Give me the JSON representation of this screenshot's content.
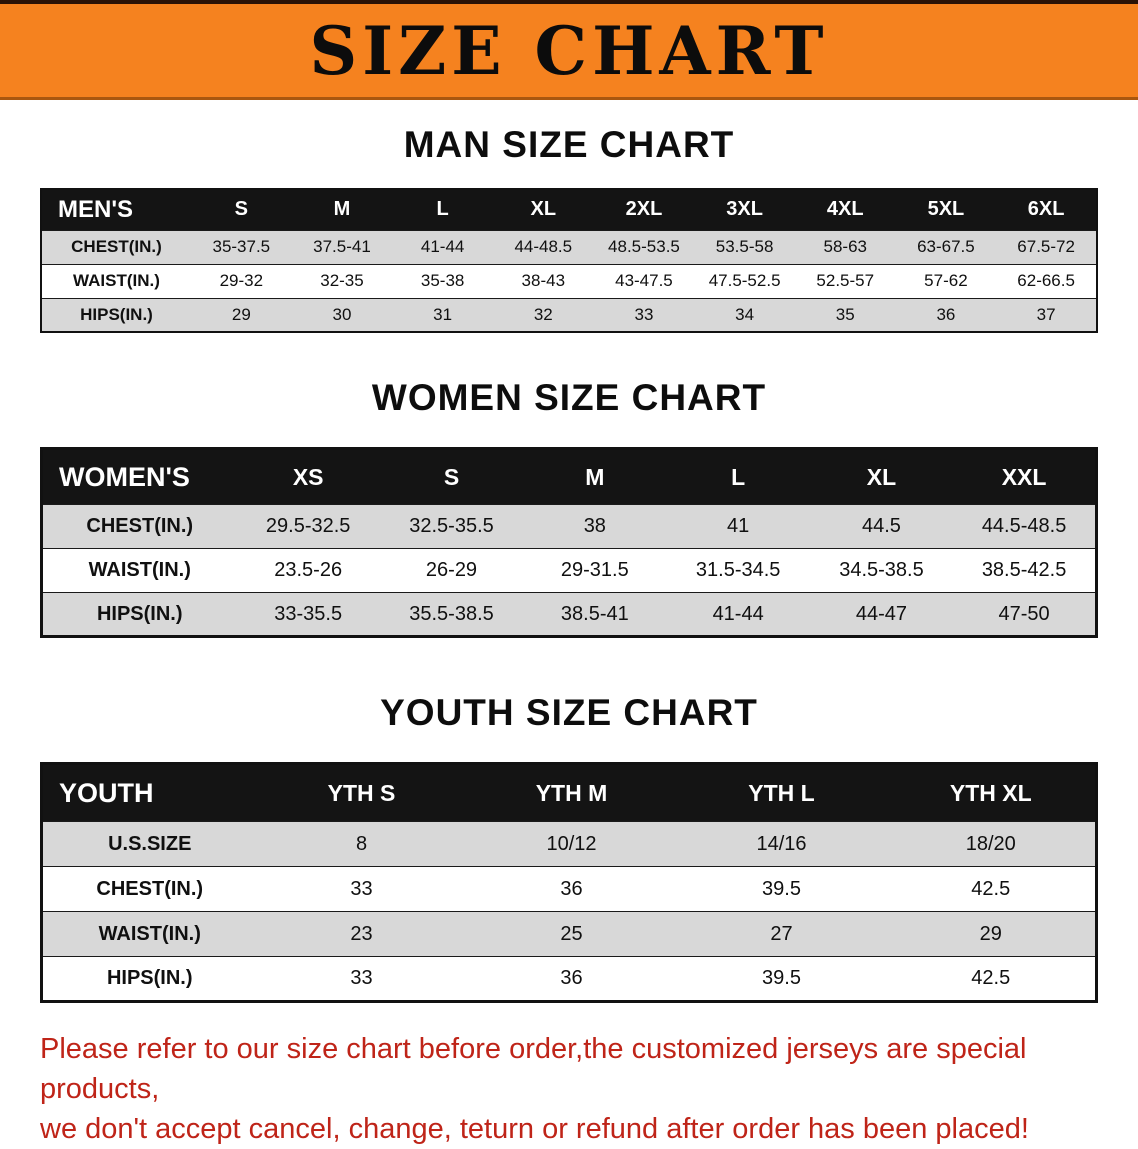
{
  "banner": {
    "title": "SIZE CHART"
  },
  "colors": {
    "banner_bg": "#f5821f",
    "header_row_bg": "#141414",
    "alt_row_bg": "#d8d8d8",
    "note_text": "#bf2418"
  },
  "sections": [
    {
      "heading": "MAN SIZE CHART",
      "header_label": "MEN'S",
      "columns": [
        "S",
        "M",
        "L",
        "XL",
        "2XL",
        "3XL",
        "4XL",
        "5XL",
        "6XL"
      ],
      "rows": [
        {
          "label": "CHEST(IN.)",
          "values": [
            "35-37.5",
            "37.5-41",
            "41-44",
            "44-48.5",
            "48.5-53.5",
            "53.5-58",
            "58-63",
            "63-67.5",
            "67.5-72"
          ]
        },
        {
          "label": "WAIST(IN.)",
          "values": [
            "29-32",
            "32-35",
            "35-38",
            "38-43",
            "43-47.5",
            "47.5-52.5",
            "52.5-57",
            "57-62",
            "62-66.5"
          ]
        },
        {
          "label": "HIPS(IN.)",
          "values": [
            "29",
            "30",
            "31",
            "32",
            "33",
            "34",
            "35",
            "36",
            "37"
          ]
        }
      ]
    },
    {
      "heading": "WOMEN SIZE CHART",
      "header_label": "WOMEN'S",
      "columns": [
        "XS",
        "S",
        "M",
        "L",
        "XL",
        "XXL"
      ],
      "rows": [
        {
          "label": "CHEST(IN.)",
          "values": [
            "29.5-32.5",
            "32.5-35.5",
            "38",
            "41",
            "44.5",
            "44.5-48.5"
          ]
        },
        {
          "label": "WAIST(IN.)",
          "values": [
            "23.5-26",
            "26-29",
            "29-31.5",
            "31.5-34.5",
            "34.5-38.5",
            "38.5-42.5"
          ]
        },
        {
          "label": "HIPS(IN.)",
          "values": [
            "33-35.5",
            "35.5-38.5",
            "38.5-41",
            "41-44",
            "44-47",
            "47-50"
          ]
        }
      ]
    },
    {
      "heading": "YOUTH SIZE CHART",
      "header_label": "YOUTH",
      "columns": [
        "YTH S",
        "YTH M",
        "YTH L",
        "YTH XL"
      ],
      "rows": [
        {
          "label": "U.S.SIZE",
          "values": [
            "8",
            "10/12",
            "14/16",
            "18/20"
          ]
        },
        {
          "label": "CHEST(IN.)",
          "values": [
            "33",
            "36",
            "39.5",
            "42.5"
          ]
        },
        {
          "label": "WAIST(IN.)",
          "values": [
            "23",
            "25",
            "27",
            "29"
          ]
        },
        {
          "label": "HIPS(IN.)",
          "values": [
            "33",
            "36",
            "39.5",
            "42.5"
          ]
        }
      ]
    }
  ],
  "note": {
    "line1": "Please refer to our size chart before order,the customized jerseys are special products,",
    "line2": "we don't accept cancel, change, teturn or refund after order has been placed!"
  }
}
